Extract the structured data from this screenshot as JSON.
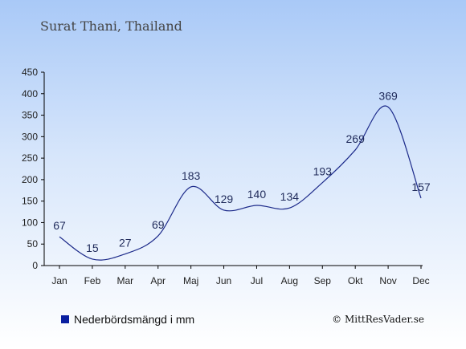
{
  "chart_data": {
    "type": "line",
    "title": "Surat Thani, Thailand",
    "categories": [
      "Jan",
      "Feb",
      "Mar",
      "Apr",
      "Maj",
      "Jun",
      "Jul",
      "Aug",
      "Sep",
      "Okt",
      "Nov",
      "Dec"
    ],
    "series": [
      {
        "name": "Nederbördsmängd i mm",
        "values": [
          67,
          15,
          27,
          69,
          183,
          129,
          140,
          134,
          193,
          269,
          369,
          157
        ]
      }
    ],
    "data_labels": [
      "67",
      "15",
      "27",
      "69",
      "183",
      "129",
      "140",
      "134",
      "193",
      "269",
      "369",
      "157"
    ],
    "ylim": [
      0,
      450
    ],
    "yticks": [
      "0",
      "50",
      "100",
      "150",
      "200",
      "250",
      "300",
      "350",
      "400",
      "450"
    ],
    "ytick_values": [
      0,
      50,
      100,
      150,
      200,
      250,
      300,
      350,
      400,
      450
    ],
    "grid": false,
    "legend_position": "bottom-left",
    "line_color": "#1c2a8a",
    "legend_color": "#0a1fa0"
  },
  "copyright": "© MittResVader.se"
}
